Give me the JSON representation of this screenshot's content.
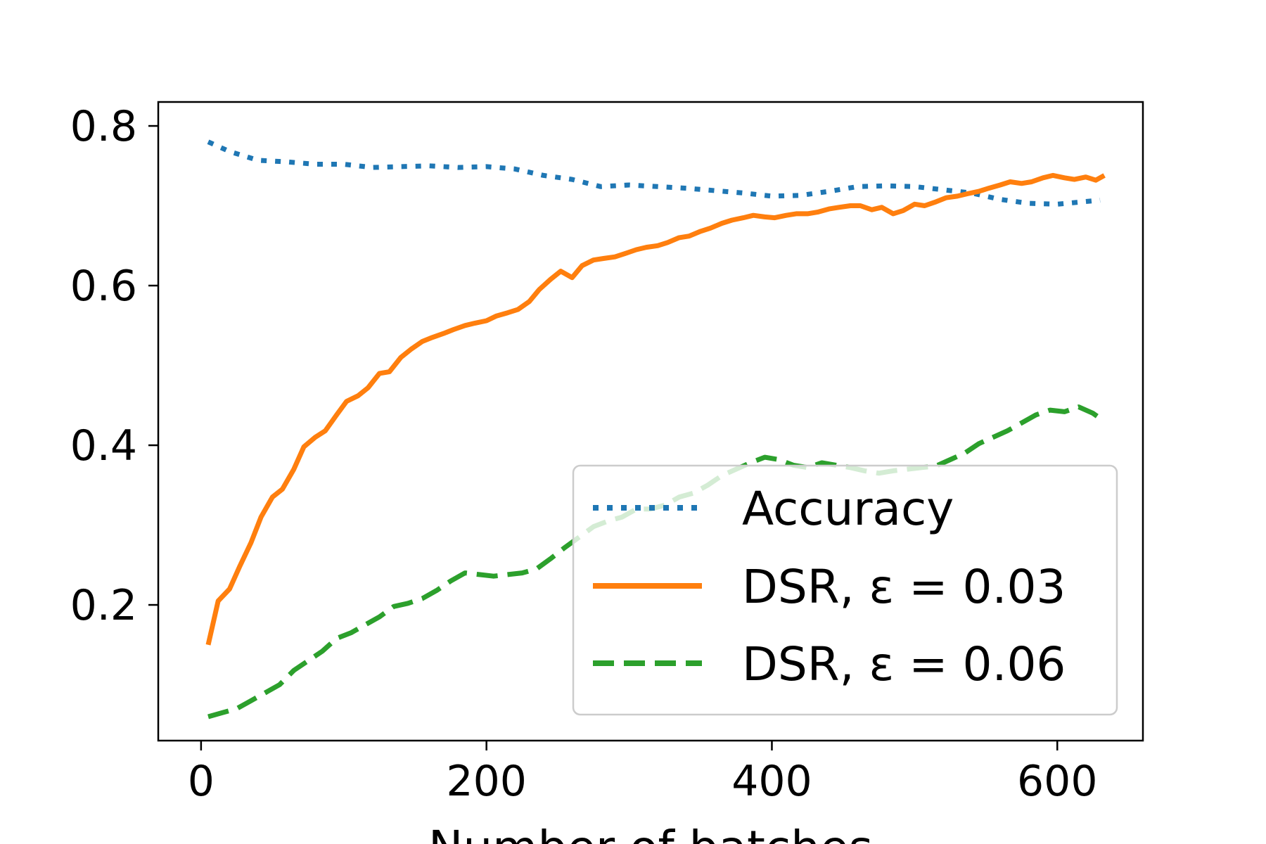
{
  "chart_data": {
    "type": "line",
    "title": "",
    "xlabel": "Number of batches",
    "ylabel": "",
    "xlim": [
      -30,
      660
    ],
    "ylim": [
      0.03,
      0.83
    ],
    "x_ticks": [
      0,
      200,
      400,
      600
    ],
    "y_ticks": [
      0.2,
      0.4,
      0.6,
      0.8
    ],
    "x_tick_labels": [
      "0",
      "200",
      "400",
      "600"
    ],
    "y_tick_labels": [
      "0.2",
      "0.4",
      "0.6",
      "0.8"
    ],
    "grid": false,
    "legend_position": "lower-right",
    "series": [
      {
        "name": "Accuracy",
        "color": "#1f77b4",
        "style": "dotted",
        "x": [
          5,
          20,
          40,
          60,
          80,
          100,
          120,
          140,
          160,
          180,
          200,
          220,
          240,
          260,
          280,
          300,
          320,
          340,
          360,
          380,
          400,
          420,
          440,
          460,
          480,
          500,
          520,
          540,
          560,
          580,
          600,
          630
        ],
        "y": [
          0.78,
          0.768,
          0.757,
          0.755,
          0.752,
          0.752,
          0.748,
          0.749,
          0.75,
          0.748,
          0.749,
          0.746,
          0.738,
          0.733,
          0.724,
          0.726,
          0.724,
          0.722,
          0.719,
          0.716,
          0.712,
          0.713,
          0.718,
          0.724,
          0.725,
          0.724,
          0.72,
          0.716,
          0.708,
          0.703,
          0.702,
          0.707
        ]
      },
      {
        "name": "DSR, ε = 0.03",
        "color": "#ff7f0e",
        "style": "solid",
        "x": [
          5,
          12,
          20,
          27,
          35,
          42,
          50,
          57,
          65,
          72,
          80,
          87,
          95,
          102,
          110,
          117,
          125,
          132,
          140,
          147,
          155,
          162,
          170,
          177,
          185,
          192,
          200,
          207,
          215,
          222,
          230,
          237,
          245,
          252,
          260,
          267,
          275,
          282,
          290,
          297,
          305,
          312,
          320,
          327,
          335,
          342,
          350,
          357,
          365,
          372,
          380,
          387,
          395,
          402,
          410,
          417,
          425,
          432,
          440,
          447,
          455,
          462,
          470,
          477,
          485,
          492,
          500,
          507,
          515,
          522,
          530,
          537,
          545,
          552,
          560,
          567,
          575,
          582,
          590,
          597,
          605,
          612,
          620,
          627,
          633
        ],
        "y": [
          0.15,
          0.205,
          0.22,
          0.248,
          0.278,
          0.31,
          0.335,
          0.345,
          0.37,
          0.398,
          0.41,
          0.418,
          0.438,
          0.455,
          0.462,
          0.472,
          0.49,
          0.492,
          0.51,
          0.52,
          0.53,
          0.535,
          0.54,
          0.545,
          0.55,
          0.553,
          0.556,
          0.562,
          0.566,
          0.57,
          0.58,
          0.595,
          0.608,
          0.618,
          0.61,
          0.625,
          0.632,
          0.634,
          0.636,
          0.64,
          0.645,
          0.648,
          0.65,
          0.654,
          0.66,
          0.662,
          0.668,
          0.672,
          0.678,
          0.682,
          0.685,
          0.688,
          0.686,
          0.685,
          0.688,
          0.69,
          0.69,
          0.692,
          0.696,
          0.698,
          0.7,
          0.7,
          0.695,
          0.698,
          0.69,
          0.694,
          0.702,
          0.7,
          0.705,
          0.71,
          0.712,
          0.715,
          0.718,
          0.722,
          0.726,
          0.73,
          0.728,
          0.73,
          0.735,
          0.738,
          0.735,
          0.733,
          0.736,
          0.732,
          0.738
        ]
      },
      {
        "name": "DSR, ε = 0.06",
        "color": "#2ca02c",
        "style": "dashed",
        "x": [
          5,
          15,
          25,
          35,
          45,
          55,
          65,
          75,
          85,
          95,
          105,
          115,
          125,
          135,
          145,
          155,
          165,
          175,
          185,
          195,
          205,
          215,
          225,
          235,
          245,
          255,
          265,
          275,
          285,
          295,
          305,
          315,
          325,
          335,
          345,
          355,
          365,
          375,
          385,
          395,
          405,
          415,
          425,
          435,
          445,
          455,
          465,
          475,
          485,
          495,
          505,
          515,
          525,
          535,
          545,
          555,
          565,
          575,
          585,
          595,
          605,
          615,
          625,
          633
        ],
        "y": [
          0.06,
          0.065,
          0.07,
          0.08,
          0.09,
          0.1,
          0.118,
          0.13,
          0.142,
          0.158,
          0.165,
          0.175,
          0.185,
          0.198,
          0.202,
          0.208,
          0.218,
          0.23,
          0.24,
          0.238,
          0.236,
          0.238,
          0.24,
          0.245,
          0.258,
          0.272,
          0.285,
          0.298,
          0.305,
          0.31,
          0.32,
          0.32,
          0.325,
          0.335,
          0.34,
          0.35,
          0.362,
          0.37,
          0.378,
          0.385,
          0.382,
          0.375,
          0.372,
          0.378,
          0.375,
          0.372,
          0.368,
          0.365,
          0.368,
          0.37,
          0.372,
          0.374,
          0.382,
          0.39,
          0.402,
          0.41,
          0.418,
          0.428,
          0.438,
          0.444,
          0.442,
          0.448,
          0.44,
          0.43
        ]
      }
    ]
  }
}
